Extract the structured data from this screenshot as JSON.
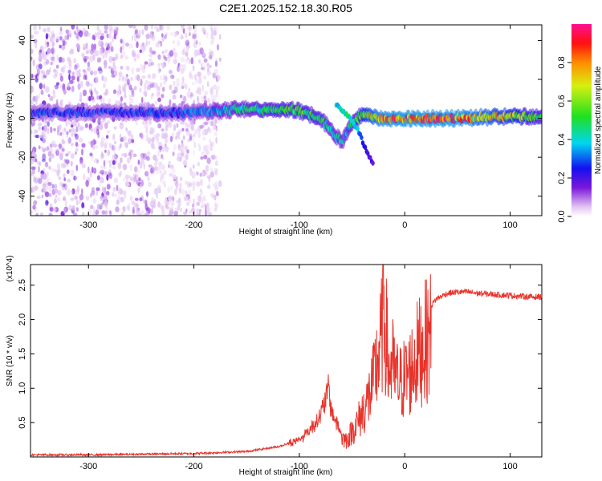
{
  "title": "C2E1.2025.152.18.30.R05",
  "colors": {
    "snr_line": "#e8332b",
    "axis": "#000000",
    "background": "#ffffff"
  },
  "chart_data": [
    {
      "type": "heatmap",
      "title": "C2E1.2025.152.18.30.R05",
      "xlabel": "Height of straight line (km)",
      "ylabel": "Frequency (Hz)",
      "xlim": [
        -355,
        130
      ],
      "ylim": [
        -50,
        48
      ],
      "x_ticks": [
        -300,
        -200,
        -100,
        0,
        100
      ],
      "y_ticks": [
        -40,
        -20,
        0,
        20,
        40
      ],
      "grid": false,
      "colorbar": {
        "label": "Normalized spectral amplitude",
        "range": [
          0,
          1
        ],
        "ticks": [
          0.0,
          0.2,
          0.4,
          0.6,
          0.8
        ],
        "colormap": "white-violet-blue-cyan-green-yellow-orange-red-magenta"
      },
      "ridge": {
        "x": [
          -350,
          -300,
          -250,
          -200,
          -150,
          -100,
          -80,
          -70,
          -60,
          -55,
          -50,
          -45,
          -40,
          -30,
          -20,
          0,
          50,
          100,
          130
        ],
        "frequency": [
          3,
          3,
          3,
          3,
          5,
          4,
          0,
          -6,
          -12,
          -8,
          -2,
          0,
          2,
          1,
          0,
          0,
          0,
          1,
          1
        ],
        "amplitude": [
          0.3,
          0.3,
          0.3,
          0.35,
          0.5,
          0.6,
          0.55,
          0.45,
          0.45,
          0.4,
          0.5,
          0.6,
          0.7,
          0.85,
          0.95,
          0.95,
          0.95,
          0.75,
          0.55
        ]
      },
      "secondary_branch": {
        "x": [
          -65,
          -55,
          -45,
          -40,
          -35,
          -30
        ],
        "frequency": [
          7,
          2,
          -5,
          -12,
          -18,
          -24
        ],
        "amplitude": [
          0.45,
          0.5,
          0.4,
          0.3,
          0.25,
          0.2
        ]
      },
      "noise_region": {
        "x_range": [
          -355,
          -175
        ],
        "frequency_range": [
          -50,
          48
        ]
      }
    },
    {
      "type": "line",
      "xlabel": "Height of straight line (km)",
      "ylabel": "SNR (10 * v/v)",
      "y_multiplier": "(x10^4)",
      "xlim": [
        -355,
        130
      ],
      "ylim": [
        0,
        2.8
      ],
      "x_ticks": [
        -300,
        -200,
        -100,
        0,
        100
      ],
      "y_ticks": [
        0.5,
        1.0,
        1.5,
        2.0,
        2.5
      ],
      "grid": false,
      "series": [
        {
          "x": [
            -355,
            -300,
            -250,
            -200,
            -150,
            -120,
            -100,
            -90,
            -80,
            -75,
            -72,
            -70,
            -65,
            -60,
            -55,
            -50,
            -45,
            -40,
            -35,
            -30,
            -25,
            -22,
            -20,
            -17,
            -15,
            -12,
            -10,
            -5,
            0,
            5,
            10,
            15,
            20,
            25,
            30,
            40,
            50,
            60,
            70,
            80,
            90,
            100,
            110,
            120,
            130
          ],
          "y": [
            0.03,
            0.03,
            0.04,
            0.05,
            0.08,
            0.15,
            0.25,
            0.4,
            0.6,
            0.85,
            1.0,
            0.7,
            0.5,
            0.35,
            0.3,
            0.45,
            0.6,
            0.8,
            1.0,
            1.3,
            1.8,
            2.1,
            2.75,
            2.0,
            1.5,
            1.7,
            1.45,
            1.3,
            1.4,
            1.5,
            1.75,
            1.9,
            2.05,
            2.2,
            2.3,
            2.38,
            2.4,
            2.4,
            2.38,
            2.37,
            2.36,
            2.35,
            2.34,
            2.33,
            2.33
          ]
        }
      ]
    }
  ]
}
